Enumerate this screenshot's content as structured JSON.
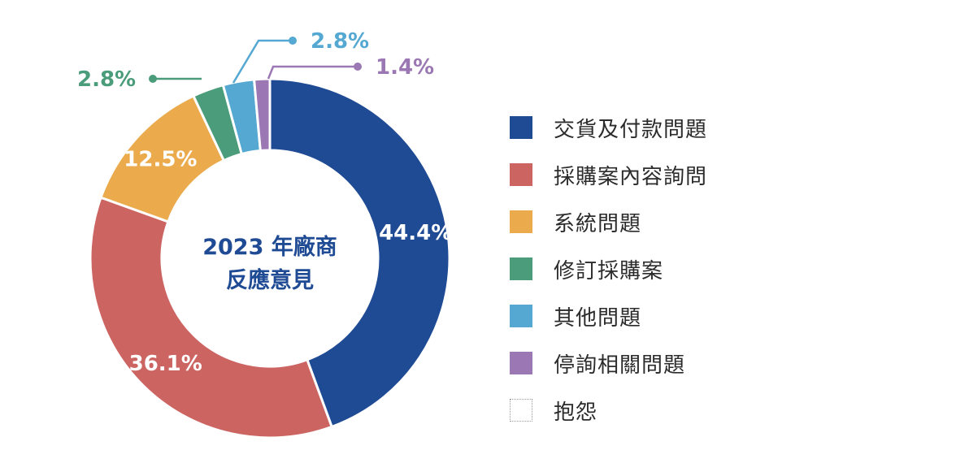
{
  "chart_data": {
    "type": "pie",
    "title": "2023 年廠商反應意見",
    "title_lines": [
      "2023 年廠商",
      "反應意見"
    ],
    "legend_position": "right",
    "series": [
      {
        "name": "交貨及付款問題",
        "value": 44.4,
        "label": "44.4%",
        "color": "#1f4a94"
      },
      {
        "name": "採購案內容詢問",
        "value": 36.1,
        "label": "36.1%",
        "color": "#cc6462"
      },
      {
        "name": "系統問題",
        "value": 12.5,
        "label": "12.5%",
        "color": "#ebaa4b"
      },
      {
        "name": "修訂採購案",
        "value": 2.8,
        "label": "2.8%",
        "color": "#4a9c7a"
      },
      {
        "name": "其他問題",
        "value": 2.8,
        "label": "2.8%",
        "color": "#54a8d2"
      },
      {
        "name": "停詢相關問題",
        "value": 1.4,
        "label": "1.4%",
        "color": "#9b78b3"
      },
      {
        "name": "抱怨",
        "value": 0,
        "label": "",
        "color": "#ffffff"
      }
    ]
  }
}
